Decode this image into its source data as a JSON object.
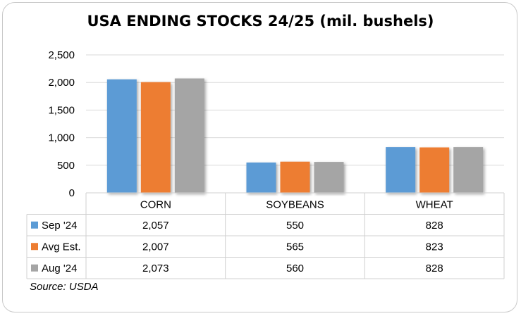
{
  "chart_data": {
    "type": "bar",
    "title": "USA ENDING STOCKS 24/25 (mil. bushels)",
    "categories": [
      "CORN",
      "SOYBEANS",
      "WHEAT"
    ],
    "series": [
      {
        "name": "Sep '24",
        "values": [
          2057,
          550,
          828
        ],
        "labels": [
          "2,057",
          "550",
          "828"
        ],
        "color": "#5b9bd5"
      },
      {
        "name": "Avg Est.",
        "values": [
          2007,
          565,
          823
        ],
        "labels": [
          "2,007",
          "565",
          "823"
        ],
        "color": "#ed7d31"
      },
      {
        "name": "Aug '24",
        "values": [
          2073,
          560,
          828
        ],
        "labels": [
          "2,073",
          "560",
          "828"
        ],
        "color": "#a5a5a5"
      }
    ],
    "ylim": [
      0,
      2500
    ],
    "yticks": [
      0,
      500,
      1000,
      1500,
      2000,
      2500
    ],
    "ytick_labels": [
      "0",
      "500",
      "1,000",
      "1,500",
      "2,000",
      "2,500"
    ],
    "grid": true,
    "legend": "data-table",
    "source": "Source: USDA"
  }
}
